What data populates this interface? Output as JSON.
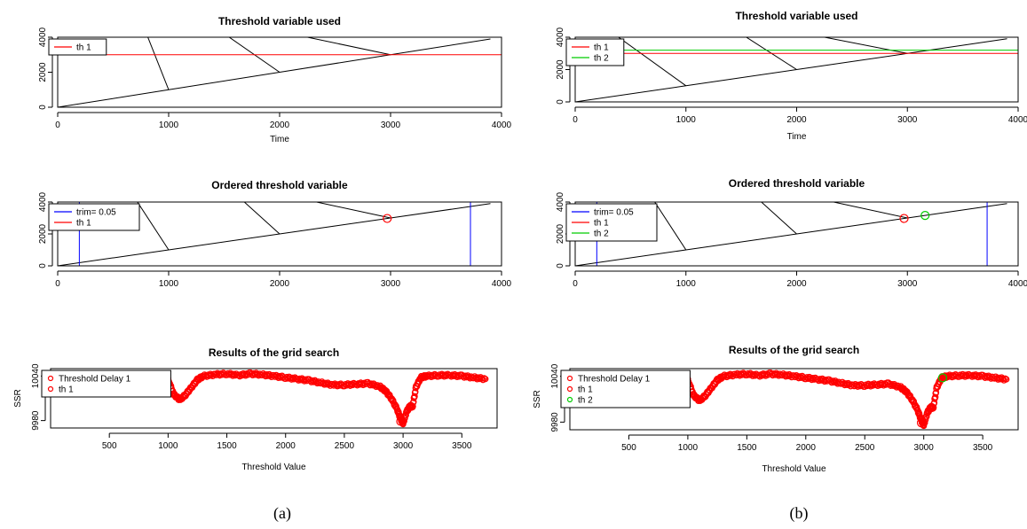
{
  "chart_data": [
    {
      "id": "a-threshold",
      "type": "line",
      "title": "Threshold variable used",
      "xlabel": "Time",
      "ylabel": "",
      "xlim": [
        0,
        4000
      ],
      "ylim": [
        0,
        4000
      ],
      "xticks": [
        0,
        1000,
        2000,
        3000,
        4000
      ],
      "yticks": [
        0,
        2000,
        4000
      ],
      "series": [
        {
          "values": [
            [
              0,
              0
            ],
            [
              1000,
              1000
            ],
            [
              2000,
              2000
            ],
            [
              3000,
              3000
            ],
            [
              3900,
              3900
            ]
          ],
          "color": "#000000"
        },
        {
          "values": [
            [
              800,
              4200
            ],
            [
              1000,
              1000
            ]
          ],
          "color": "#000000"
        },
        {
          "values": [
            [
              1500,
              4200
            ],
            [
              2000,
              2000
            ]
          ],
          "color": "#000000"
        },
        {
          "values": [
            [
              2100,
              4200
            ],
            [
              3000,
              3000
            ]
          ],
          "color": "#000000"
        }
      ],
      "hlines": [
        {
          "y": 3000,
          "color": "#ff0000"
        }
      ],
      "legend": [
        {
          "label": "th 1",
          "color": "#ff0000",
          "kind": "line"
        }
      ]
    },
    {
      "id": "b-threshold",
      "type": "line",
      "title": "Threshold variable used",
      "xlabel": "Time",
      "ylabel": "",
      "xlim": [
        0,
        4000
      ],
      "ylim": [
        0,
        4000
      ],
      "xticks": [
        0,
        1000,
        2000,
        3000,
        4000
      ],
      "yticks": [
        0,
        2000,
        4000
      ],
      "series": [
        {
          "values": [
            [
              0,
              0
            ],
            [
              1000,
              1000
            ],
            [
              2000,
              2000
            ],
            [
              3000,
              3000
            ],
            [
              3900,
              3900
            ]
          ],
          "color": "#000000"
        },
        {
          "values": [
            [
              350,
              4200
            ],
            [
              1000,
              1000
            ]
          ],
          "color": "#000000"
        },
        {
          "values": [
            [
              1500,
              4200
            ],
            [
              2000,
              2000
            ]
          ],
          "color": "#000000"
        },
        {
          "values": [
            [
              2100,
              4200
            ],
            [
              3000,
              3000
            ]
          ],
          "color": "#000000"
        }
      ],
      "hlines": [
        {
          "y": 3000,
          "color": "#ff0000"
        },
        {
          "y": 3200,
          "color": "#00cc00"
        }
      ],
      "legend": [
        {
          "label": "th 1",
          "color": "#ff0000",
          "kind": "line"
        },
        {
          "label": "th 2",
          "color": "#00cc00",
          "kind": "line"
        }
      ]
    },
    {
      "id": "a-ordered",
      "type": "line",
      "title": "Ordered threshold variable",
      "xlabel": "",
      "ylabel": "",
      "xlim": [
        0,
        4000
      ],
      "ylim": [
        0,
        4000
      ],
      "xticks": [
        0,
        1000,
        2000,
        3000,
        4000
      ],
      "yticks": [
        0,
        2000,
        4000
      ],
      "series": [
        {
          "values": [
            [
              0,
              0
            ],
            [
              1000,
              1000
            ],
            [
              2000,
              2000
            ],
            [
              3000,
              3000
            ],
            [
              3900,
              3900
            ]
          ],
          "color": "#000000"
        },
        {
          "values": [
            [
              700,
              4200
            ],
            [
              1000,
              1000
            ]
          ],
          "color": "#000000"
        },
        {
          "values": [
            [
              1650,
              4200
            ],
            [
              2000,
              2000
            ]
          ],
          "color": "#000000"
        },
        {
          "values": [
            [
              2200,
              4200
            ],
            [
              3000,
              3000
            ]
          ],
          "color": "#000000"
        }
      ],
      "vlines": [
        {
          "x": 195,
          "color": "#0000ff"
        },
        {
          "x": 3720,
          "color": "#0000ff"
        }
      ],
      "markers": [
        {
          "x": 2970,
          "y": 2970,
          "color": "#ff0000"
        }
      ],
      "legend": [
        {
          "label": "trim= 0.05",
          "color": "#0000ff",
          "kind": "line"
        },
        {
          "label": "th 1",
          "color": "#ff0000",
          "kind": "line"
        }
      ]
    },
    {
      "id": "b-ordered",
      "type": "line",
      "title": "Ordered threshold variable",
      "xlabel": "",
      "ylabel": "",
      "xlim": [
        0,
        4000
      ],
      "ylim": [
        0,
        4000
      ],
      "xticks": [
        0,
        1000,
        2000,
        3000,
        4000
      ],
      "yticks": [
        0,
        2000,
        4000
      ],
      "series": [
        {
          "values": [
            [
              0,
              0
            ],
            [
              1000,
              1000
            ],
            [
              2000,
              2000
            ],
            [
              3000,
              3000
            ],
            [
              3900,
              3900
            ]
          ],
          "color": "#000000"
        },
        {
          "values": [
            [
              700,
              4200
            ],
            [
              1000,
              1000
            ]
          ],
          "color": "#000000"
        },
        {
          "values": [
            [
              1650,
              4200
            ],
            [
              2000,
              2000
            ]
          ],
          "color": "#000000"
        },
        {
          "values": [
            [
              2200,
              4200
            ],
            [
              3000,
              3000
            ]
          ],
          "color": "#000000"
        }
      ],
      "vlines": [
        {
          "x": 195,
          "color": "#0000ff"
        },
        {
          "x": 3720,
          "color": "#0000ff"
        }
      ],
      "markers": [
        {
          "x": 2970,
          "y": 2970,
          "color": "#ff0000"
        },
        {
          "x": 3160,
          "y": 3160,
          "color": "#00cc00"
        }
      ],
      "legend": [
        {
          "label": "trim= 0.05",
          "color": "#0000ff",
          "kind": "line"
        },
        {
          "label": "th 1",
          "color": "#ff0000",
          "kind": "line"
        },
        {
          "label": "th 2",
          "color": "#00cc00",
          "kind": "line"
        }
      ]
    },
    {
      "id": "a-grid",
      "type": "scatter",
      "title": "Results of the grid search",
      "xlabel": "Threshold Value",
      "ylabel": "SSR",
      "xlim": [
        0,
        3800
      ],
      "ylim": [
        9970,
        10050
      ],
      "xticks": [
        500,
        1000,
        1500,
        2000,
        2500,
        3000,
        3500
      ],
      "yticks": [
        9980,
        10040
      ],
      "series": [
        {
          "name": "Threshold Delay 1",
          "color": "#ff0000",
          "values": [
            [
              880,
              10042
            ],
            [
              950,
              10038
            ],
            [
              1000,
              10035
            ],
            [
              1050,
              10015
            ],
            [
              1100,
              10008
            ],
            [
              1150,
              10015
            ],
            [
              1200,
              10025
            ],
            [
              1250,
              10035
            ],
            [
              1300,
              10040
            ],
            [
              1400,
              10042
            ],
            [
              1500,
              10043
            ],
            [
              1600,
              10041
            ],
            [
              1700,
              10043
            ],
            [
              1800,
              10042
            ],
            [
              1900,
              10040
            ],
            [
              2000,
              10038
            ],
            [
              2100,
              10036
            ],
            [
              2200,
              10034
            ],
            [
              2300,
              10031
            ],
            [
              2400,
              10028
            ],
            [
              2500,
              10028
            ],
            [
              2600,
              10029
            ],
            [
              2700,
              10030
            ],
            [
              2800,
              10026
            ],
            [
              2850,
              10020
            ],
            [
              2900,
              10010
            ],
            [
              2950,
              9995
            ],
            [
              2980,
              9982
            ],
            [
              3000,
              9976
            ],
            [
              3030,
              9992
            ],
            [
              3060,
              10000
            ],
            [
              3080,
              9998
            ],
            [
              3110,
              10025
            ],
            [
              3150,
              10038
            ],
            [
              3200,
              10040
            ],
            [
              3300,
              10041
            ],
            [
              3400,
              10041
            ],
            [
              3500,
              10040
            ],
            [
              3600,
              10038
            ],
            [
              3700,
              10036
            ]
          ]
        }
      ],
      "markers": [
        {
          "x": 2980,
          "y": 9979,
          "color": "#ff0000"
        }
      ],
      "legend": [
        {
          "label": "Threshold Delay 1",
          "color": "#ff0000",
          "kind": "point"
        },
        {
          "label": "th 1",
          "color": "#ff0000",
          "kind": "point"
        }
      ]
    },
    {
      "id": "b-grid",
      "type": "scatter",
      "title": "Results of the grid search",
      "xlabel": "Threshold Value",
      "ylabel": "SSR",
      "xlim": [
        0,
        3800
      ],
      "ylim": [
        9970,
        10050
      ],
      "xticks": [
        500,
        1000,
        1500,
        2000,
        2500,
        3000,
        3500
      ],
      "yticks": [
        9980,
        10040
      ],
      "series": [
        {
          "name": "Threshold Delay 1",
          "color": "#ff0000",
          "values": [
            [
              880,
              10042
            ],
            [
              950,
              10038
            ],
            [
              1000,
              10035
            ],
            [
              1050,
              10015
            ],
            [
              1100,
              10008
            ],
            [
              1150,
              10015
            ],
            [
              1200,
              10025
            ],
            [
              1250,
              10035
            ],
            [
              1300,
              10040
            ],
            [
              1400,
              10042
            ],
            [
              1500,
              10043
            ],
            [
              1600,
              10041
            ],
            [
              1700,
              10043
            ],
            [
              1800,
              10042
            ],
            [
              1900,
              10040
            ],
            [
              2000,
              10038
            ],
            [
              2100,
              10036
            ],
            [
              2200,
              10034
            ],
            [
              2300,
              10031
            ],
            [
              2400,
              10028
            ],
            [
              2500,
              10028
            ],
            [
              2600,
              10029
            ],
            [
              2700,
              10030
            ],
            [
              2800,
              10026
            ],
            [
              2850,
              10020
            ],
            [
              2900,
              10010
            ],
            [
              2950,
              9995
            ],
            [
              2980,
              9982
            ],
            [
              3000,
              9976
            ],
            [
              3030,
              9992
            ],
            [
              3060,
              10000
            ],
            [
              3080,
              9998
            ],
            [
              3110,
              10025
            ],
            [
              3150,
              10038
            ],
            [
              3200,
              10040
            ],
            [
              3300,
              10041
            ],
            [
              3400,
              10041
            ],
            [
              3500,
              10040
            ],
            [
              3600,
              10038
            ],
            [
              3700,
              10036
            ]
          ]
        }
      ],
      "markers": [
        {
          "x": 2980,
          "y": 9979,
          "color": "#ff0000"
        },
        {
          "x": 3160,
          "y": 10038,
          "color": "#00cc00"
        }
      ],
      "legend": [
        {
          "label": "Threshold Delay 1",
          "color": "#ff0000",
          "kind": "point"
        },
        {
          "label": "th 1",
          "color": "#ff0000",
          "kind": "point"
        },
        {
          "label": "th 2",
          "color": "#00cc00",
          "kind": "point"
        }
      ]
    }
  ],
  "captions": {
    "a": "(a)",
    "b": "(b)"
  }
}
